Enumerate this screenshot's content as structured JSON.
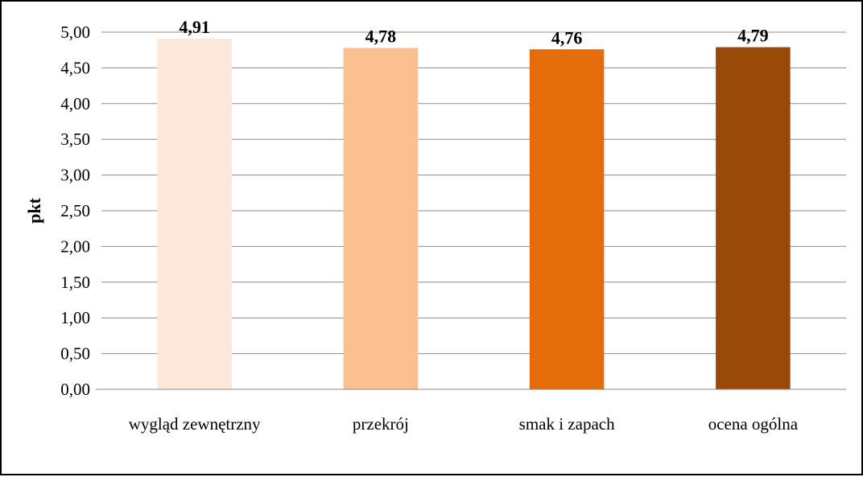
{
  "chart_data": {
    "type": "bar",
    "title": "",
    "xlabel": "",
    "ylabel": "pkt",
    "categories": [
      "wygląd zewnętrzny",
      "przekrój",
      "smak i zapach",
      "ocena ogólna"
    ],
    "values": [
      4.91,
      4.78,
      4.76,
      4.79
    ],
    "data_labels": [
      "4,91",
      "4,78",
      "4,76",
      "4,79"
    ],
    "bar_colors": [
      "#fde9d9",
      "#fac090",
      "#e46c0a",
      "#984807"
    ],
    "ylim": [
      0,
      5
    ],
    "yticks": [
      0,
      0.5,
      1,
      1.5,
      2,
      2.5,
      3,
      3.5,
      4,
      4.5,
      5
    ],
    "ytick_labels": [
      "0,00",
      "0,50",
      "1,00",
      "1,50",
      "2,00",
      "2,50",
      "3,00",
      "3,50",
      "4,00",
      "4,50",
      "5,00"
    ],
    "grid": true,
    "legend": "none"
  }
}
